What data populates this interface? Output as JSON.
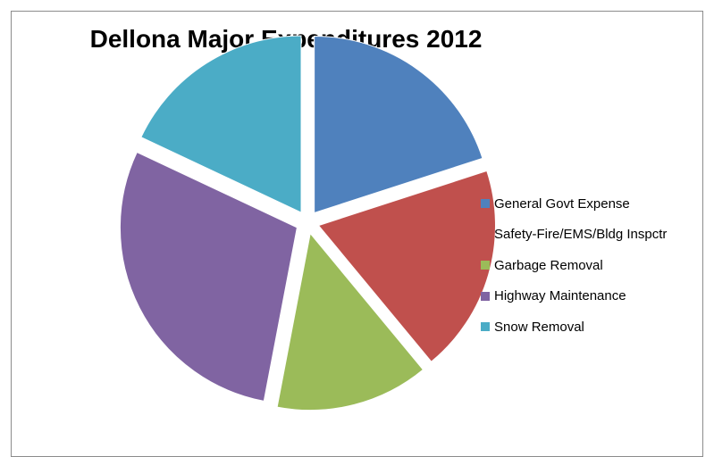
{
  "chart_data": {
    "type": "pie",
    "title": "Dellona Major Expenditures 2012",
    "exploded": true,
    "legend_position": "right",
    "categories": [
      "General Govt Expense",
      "Safety-Fire/EMS/Bldg Inspctr",
      "Garbage Removal",
      "Highway Maintenance",
      "Snow Removal"
    ],
    "values": [
      20,
      19,
      14,
      29,
      18
    ],
    "colors": [
      "#4F81BD",
      "#C0504D",
      "#9BBB59",
      "#8064A2",
      "#4BACC6"
    ]
  }
}
